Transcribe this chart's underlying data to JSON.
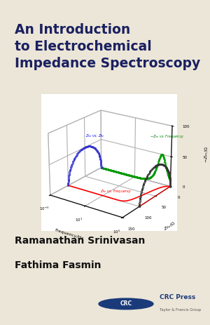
{
  "bg_color": "#ece6d8",
  "title_lines": [
    "An Introduction",
    "to Electrochemical",
    "Impedance Spectroscopy"
  ],
  "title_color": "#1a2060",
  "author_lines": [
    "Ramanathan Srinivasan",
    "Fathima Fasmin"
  ],
  "author_color": "#111111",
  "R": 100,
  "freq_min": -3,
  "freq_max": 5,
  "zre_max": 150,
  "zim_max": 100,
  "xlabel": "Frequency/Hz",
  "ylabel": "$-Z_{Im}/\\Omega$",
  "zlabel": "$Z_{Re}/\\Omega$",
  "crc_color": "#1a3a7a",
  "plot_frame_color": "#cccccc"
}
